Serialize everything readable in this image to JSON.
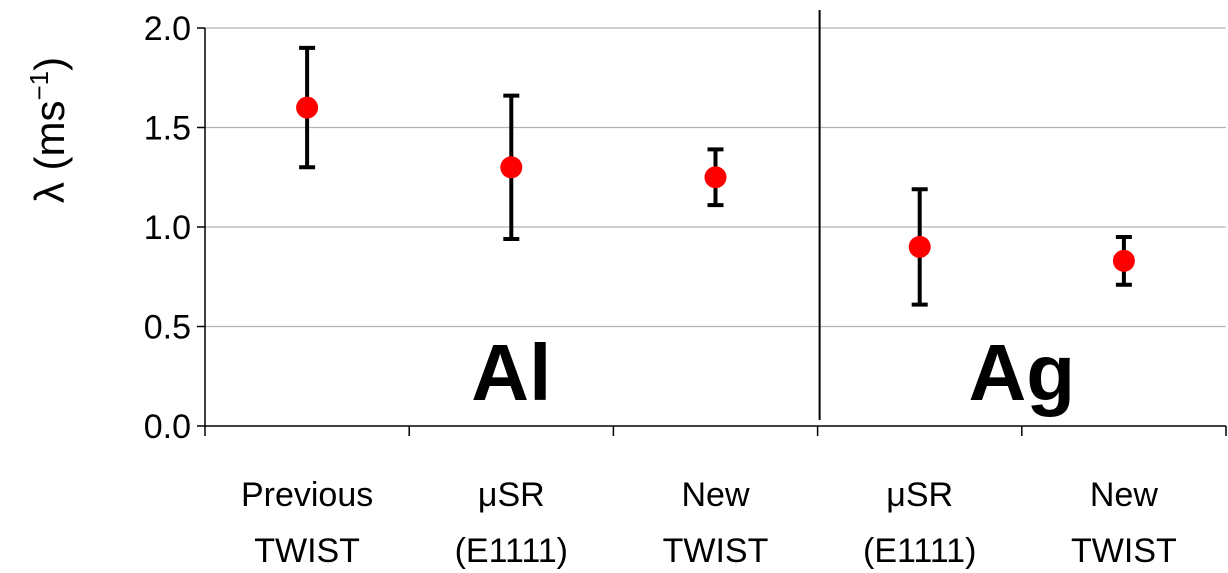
{
  "chart_data": {
    "type": "scatter",
    "ylabel": "λ (ms",
    "ylabel_sup": "−1",
    "ylabel_close": ")",
    "ylim": [
      0.0,
      2.0
    ],
    "yticks": [
      "0.0",
      "0.5",
      "1.0",
      "1.5",
      "2.0"
    ],
    "ytick_values": [
      0.0,
      0.5,
      1.0,
      1.5,
      2.0
    ],
    "grid": true,
    "categories": [
      [
        "Previous",
        "TWIST"
      ],
      [
        "μSR",
        "(E1111)"
      ],
      [
        "New",
        "TWIST"
      ],
      [
        "μSR",
        "(E1111)"
      ],
      [
        "New",
        "TWIST"
      ]
    ],
    "values": [
      1.6,
      1.3,
      1.25,
      0.9,
      0.83
    ],
    "error_upper": [
      1.9,
      1.66,
      1.39,
      1.19,
      0.95
    ],
    "error_lower": [
      1.3,
      0.94,
      1.11,
      0.61,
      0.71
    ],
    "groups": [
      {
        "label": "Al",
        "category_indices": [
          0,
          1,
          2
        ]
      },
      {
        "label": "Ag",
        "category_indices": [
          3,
          4
        ]
      }
    ],
    "marker_color": "#ff0000",
    "errorbar_color": "#000000",
    "grid_color": "#b3b3b3"
  }
}
